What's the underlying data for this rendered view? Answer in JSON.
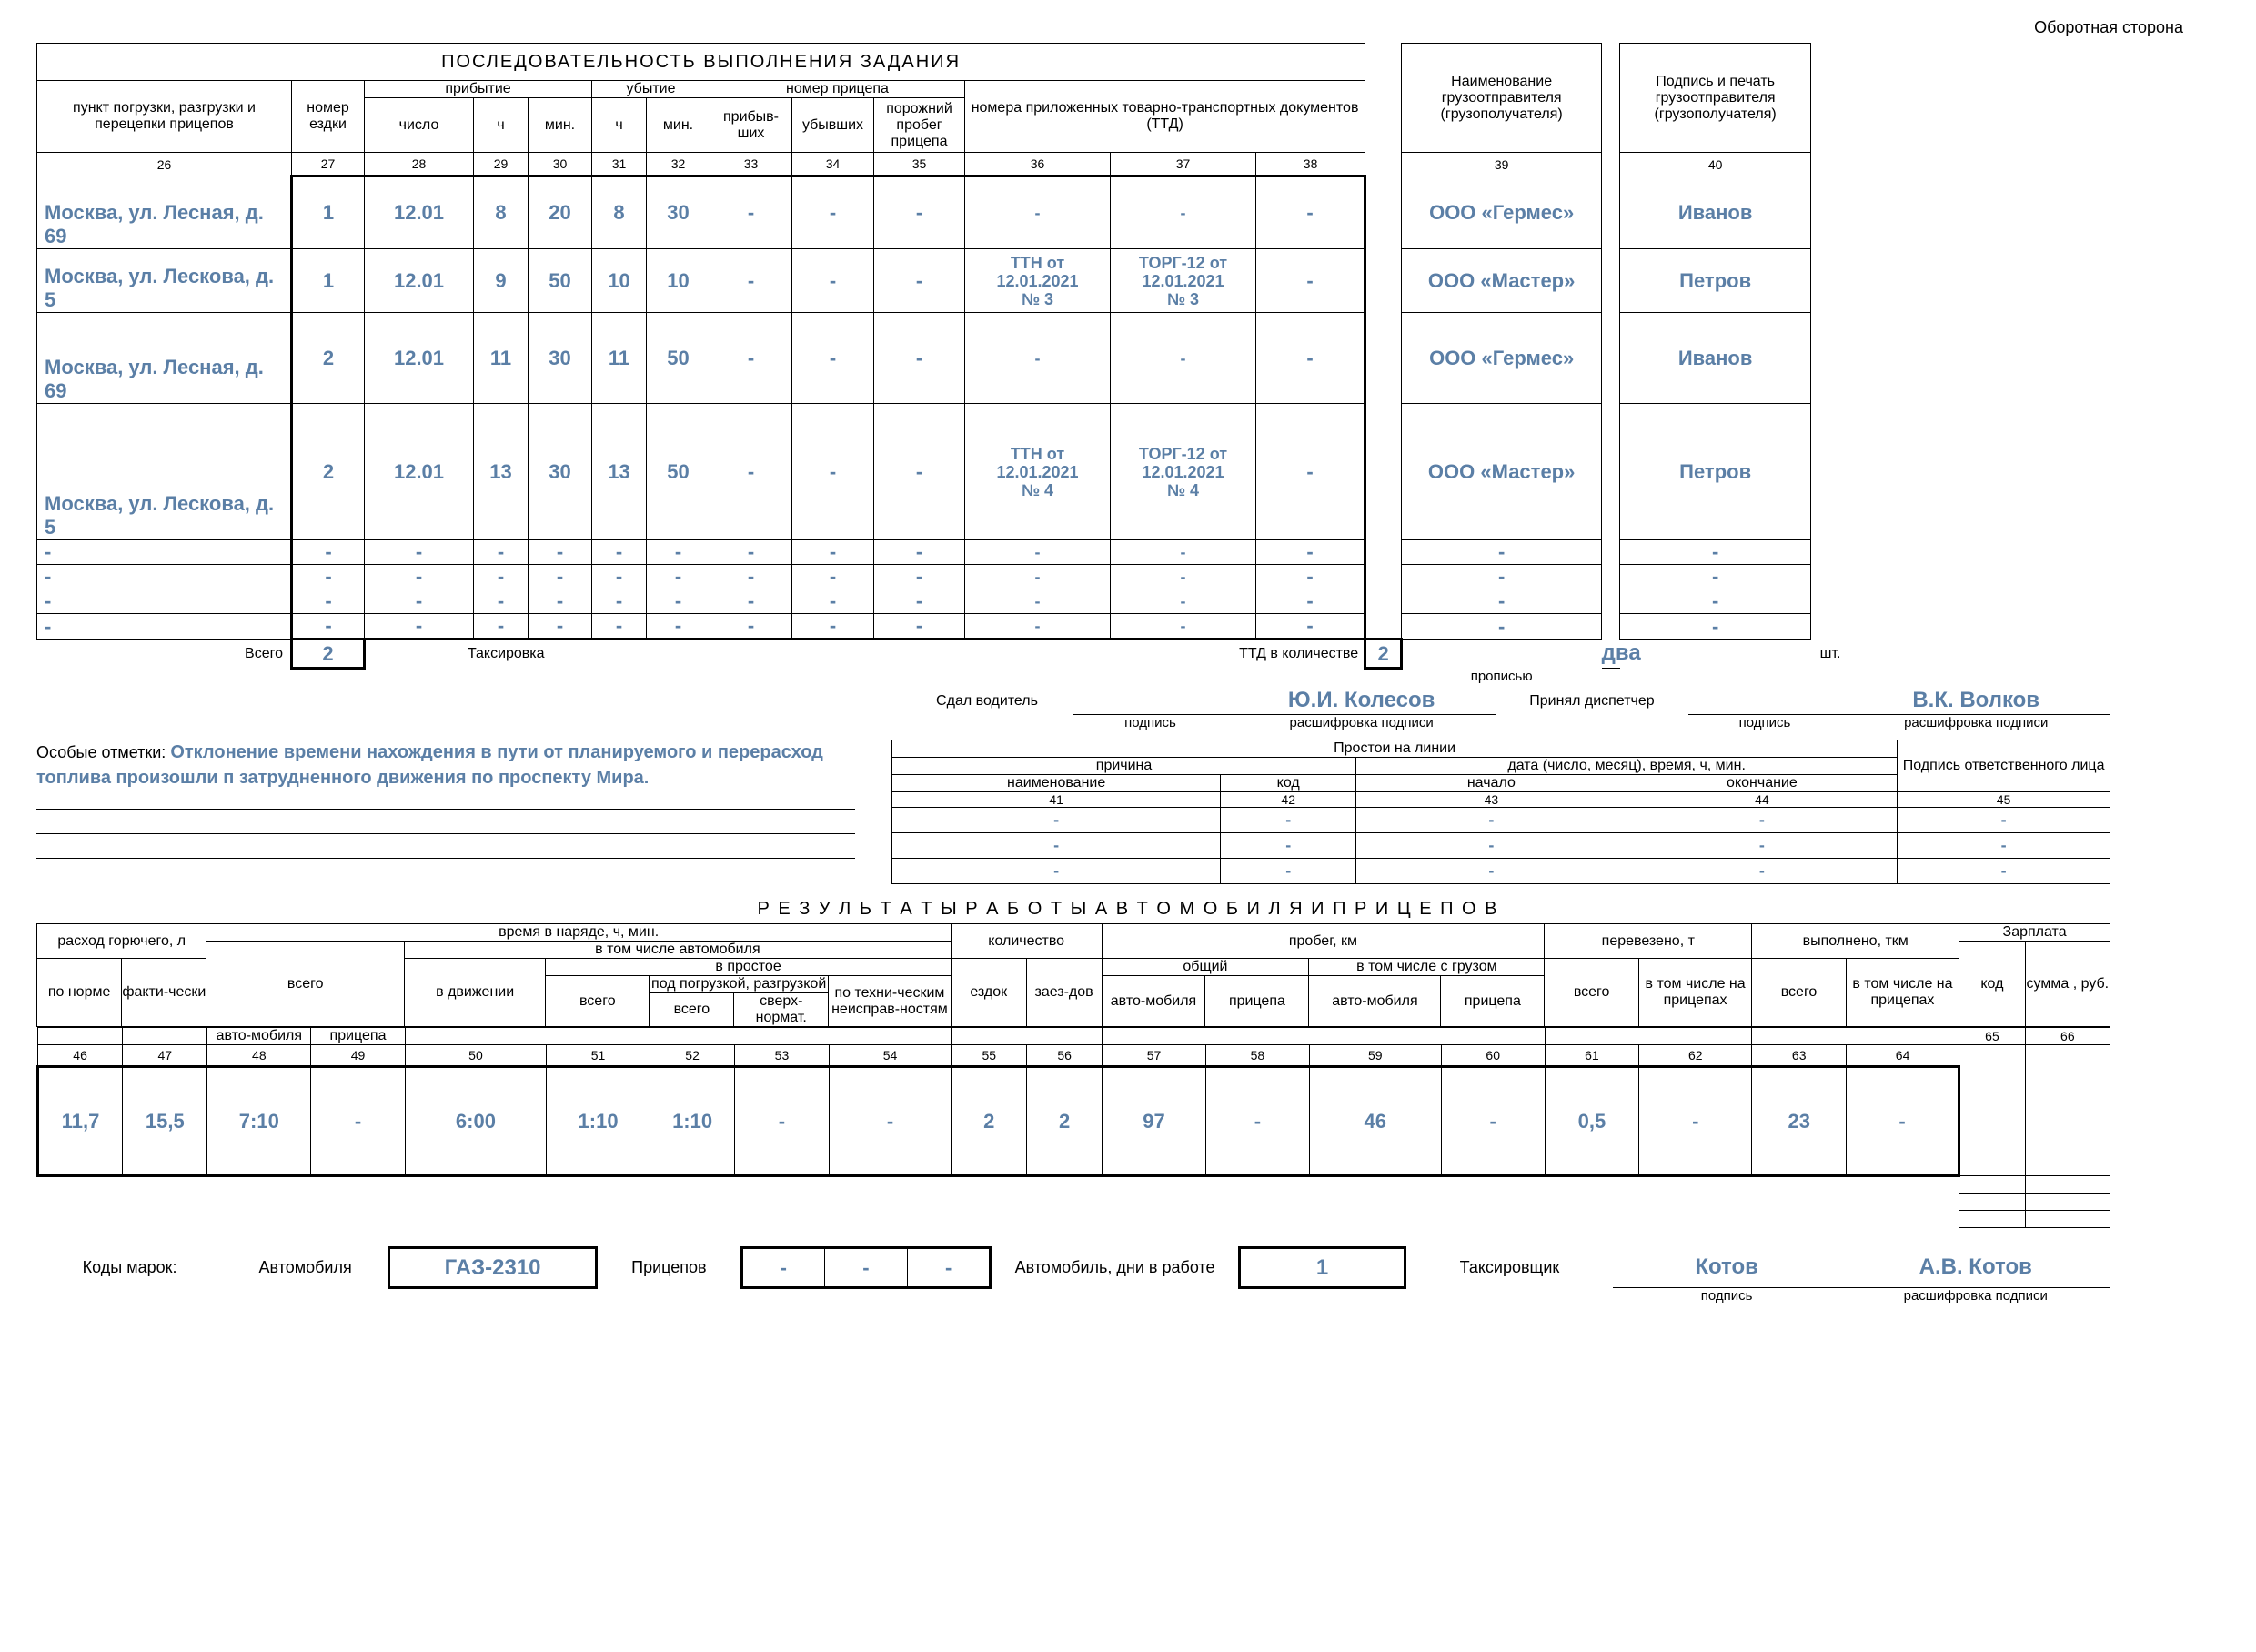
{
  "corner_label": "Оборотная сторона",
  "titles": {
    "main": "ПОСЛЕДОВАТЕЛЬНОСТЬ  ВЫПОЛНЕНИЯ  ЗАДАНИЯ",
    "results": "Р Е З У Л Ь Т А Т Ы   Р А Б О Т Ы   А В Т О М О Б И Л Я   И   П Р И Ц Е П О В"
  },
  "main_table": {
    "headers": {
      "c26": "пункт погрузки, разгрузки и перецепки прицепов",
      "c27": "номер ездки",
      "arrival": "прибытие",
      "departure": "убытие",
      "trailer_sec": "номер прицепа",
      "c28": "число",
      "c29": "ч",
      "c30": "мин.",
      "c31": "ч",
      "c32": "мин.",
      "c33": "прибыв-ших",
      "c34": "убывших",
      "c35": "порожний пробег прицепа",
      "ttd": "номера приложенных товарно-транспортных документов (ТТД)",
      "c39_h": "Наименование грузоотправителя (грузополучателя)",
      "c40_h": "Подпись и печать грузоотправителя (грузополучателя)"
    },
    "col_nums": {
      "c26": "26",
      "c27": "27",
      "c28": "28",
      "c29": "29",
      "c30": "30",
      "c31": "31",
      "c32": "32",
      "c33": "33",
      "c34": "34",
      "c35": "35",
      "c36": "36",
      "c37": "37",
      "c38": "38",
      "c39": "39",
      "c40": "40"
    },
    "rows": [
      {
        "c26": "Москва, ул. Лесная, д. 69",
        "c27": "1",
        "c28": "12.01",
        "c29": "8",
        "c30": "20",
        "c31": "8",
        "c32": "30",
        "c33": "-",
        "c34": "-",
        "c35": "-",
        "c36": "-",
        "c37": "-",
        "c38": "-",
        "c39": "ООО «Гермес»",
        "c40": "Иванов"
      },
      {
        "c26": "Москва, ул. Лескова, д. 5",
        "c27": "1",
        "c28": "12.01",
        "c29": "9",
        "c30": "50",
        "c31": "10",
        "c32": "10",
        "c33": "-",
        "c34": "-",
        "c35": "-",
        "c36": "ТТН от 12.01.2021 № 3",
        "c37": "ТОРГ-12 от 12.01.2021 № 3",
        "c38": "-",
        "c39": "ООО «Мастер»",
        "c40": "Петров"
      },
      {
        "c26": "Москва, ул. Лесная, д. 69",
        "c27": "2",
        "c28": "12.01",
        "c29": "11",
        "c30": "30",
        "c31": "11",
        "c32": "50",
        "c33": "-",
        "c34": "-",
        "c35": "-",
        "c36": "-",
        "c37": "-",
        "c38": "-",
        "c39": "ООО «Гермес»",
        "c40": "Иванов"
      },
      {
        "c26": "Москва, ул. Лескова, д. 5",
        "c27": "2",
        "c28": "12.01",
        "c29": "13",
        "c30": "30",
        "c31": "13",
        "c32": "50",
        "c33": "-",
        "c34": "-",
        "c35": "-",
        "c36": "ТТН от 12.01.2021 № 4",
        "c37": "ТОРГ-12 от 12.01.2021 № 4",
        "c38": "-",
        "c39": "ООО «Мастер»",
        "c40": "Петров"
      },
      {
        "c26": "-",
        "c27": "-",
        "c28": "-",
        "c29": "-",
        "c30": "-",
        "c31": "-",
        "c32": "-",
        "c33": "-",
        "c34": "-",
        "c35": "-",
        "c36": "-",
        "c37": "-",
        "c38": "-",
        "c39": "-",
        "c40": "-"
      },
      {
        "c26": "-",
        "c27": "-",
        "c28": "-",
        "c29": "-",
        "c30": "-",
        "c31": "-",
        "c32": "-",
        "c33": "-",
        "c34": "-",
        "c35": "-",
        "c36": "-",
        "c37": "-",
        "c38": "-",
        "c39": "-",
        "c40": "-"
      },
      {
        "c26": "-",
        "c27": "-",
        "c28": "-",
        "c29": "-",
        "c30": "-",
        "c31": "-",
        "c32": "-",
        "c33": "-",
        "c34": "-",
        "c35": "-",
        "c36": "-",
        "c37": "-",
        "c38": "-",
        "c39": "-",
        "c40": "-"
      },
      {
        "c26": "-",
        "c27": "-",
        "c28": "-",
        "c29": "-",
        "c30": "-",
        "c31": "-",
        "c32": "-",
        "c33": "-",
        "c34": "-",
        "c35": "-",
        "c36": "-",
        "c37": "-",
        "c38": "-",
        "c39": "-",
        "c40": "-"
      }
    ],
    "totals": {
      "label_total": "Всего",
      "val_total": "2",
      "label_tax": "Таксировка",
      "label_ttd": "ТТД в количестве",
      "val_ttd": "2",
      "words": "два",
      "unit": "шт.",
      "words_note": "прописью"
    }
  },
  "sign_line": {
    "driver_label": "Сдал водитель",
    "driver_name": "Ю.И. Колесов",
    "sign_note": "подпись",
    "decip_note": "расшифровка подписи",
    "disp_label": "Принял диспетчер",
    "disp_name": "В.К. Волков"
  },
  "remarks": {
    "label": "Особые отметки:",
    "text": "Отклонение времени нахождения в пути от планируемого и перерасход топлива произошли п затрудненного движения по проспекту Мира."
  },
  "idle_table": {
    "head_line": "Простои на линии",
    "reason": "причина",
    "date": "дата (число, месяц), время, ч, мин.",
    "name": "наименование",
    "code": "код",
    "start": "начало",
    "end": "окончание",
    "sign": "Подпись ответственного лица",
    "cols": {
      "c41": "41",
      "c42": "42",
      "c43": "43",
      "c44": "44",
      "c45": "45"
    },
    "rows": [
      {
        "c41": "-",
        "c42": "-",
        "c43": "-",
        "c44": "-",
        "c45": "-"
      },
      {
        "c41": "-",
        "c42": "-",
        "c43": "-",
        "c44": "-",
        "c45": "-"
      },
      {
        "c41": "-",
        "c42": "-",
        "c43": "-",
        "c44": "-",
        "c45": "-"
      }
    ]
  },
  "results_table": {
    "fuel": "расход горючего, л",
    "time": "время в наряде, ч, мин.",
    "qty": "количество",
    "mileage": "пробег, км",
    "cargo": "перевезено, т",
    "done": "выполнено, ткм",
    "salary": "Зарплата",
    "total": "всего",
    "incl_auto": "в том числе автомобиля",
    "idle": "в простое",
    "common": "общий",
    "with_cargo": "в том числе с грузом",
    "code": "код",
    "sum": "сумма , руб.",
    "norm": "по норме",
    "fact": "факти-чески",
    "auto": "авто-мобиля",
    "trailer": "прицепа",
    "moving": "в движении",
    "idle_total": "всего",
    "loading": "под погрузкой, разгрузкой",
    "load_total": "всего",
    "load_over": "сверх-нормат.",
    "tech": "по техни-ческим неисправ-ностям",
    "trips": "ездок",
    "calls": "заез-дов",
    "auto2": "авто-мобиля",
    "trailer2": "прицепа",
    "auto3": "авто-мобиля",
    "trailer3": "прицепа",
    "totalc": "всего",
    "on_trail": "в том числе на прицепах",
    "nums": {
      "46": "46",
      "47": "47",
      "48": "48",
      "49": "49",
      "50": "50",
      "51": "51",
      "52": "52",
      "53": "53",
      "54": "54",
      "55": "55",
      "56": "56",
      "57": "57",
      "58": "58",
      "59": "59",
      "60": "60",
      "61": "61",
      "62": "62",
      "63": "63",
      "64": "64",
      "65": "65",
      "66": "66"
    },
    "row": {
      "46": "11,7",
      "47": "15,5",
      "48": "7:10",
      "49": "-",
      "50": "6:00",
      "51": "1:10",
      "52": "1:10",
      "53": "-",
      "54": "-",
      "55": "2",
      "56": "2",
      "57": "97",
      "58": "-",
      "59": "46",
      "60": "-",
      "61": "0,5",
      "62": "-",
      "63": "23",
      "64": "-"
    }
  },
  "footer": {
    "codes_label": "Коды марок:",
    "auto_label": "Автомобиля",
    "auto_code": "ГАЗ-2310",
    "trailers_label": "Прицепов",
    "t1": "-",
    "t2": "-",
    "t3": "-",
    "days_label": "Автомобиль, дни в работе",
    "days": "1",
    "taxi_label": "Таксировщик",
    "taxi_sign": "Котов",
    "taxi_name": "А.В. Котов",
    "sign_note": "подпись",
    "decip_note": "расшифровка подписи"
  }
}
